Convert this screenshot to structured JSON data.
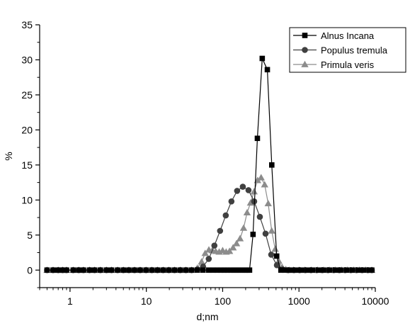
{
  "chart_data": {
    "type": "line",
    "xlabel": "d;nm",
    "ylabel": "%",
    "xscale": "log",
    "xlim": [
      0.4,
      10000
    ],
    "ylim": [
      -2.5,
      35
    ],
    "xticks": [
      1,
      10,
      100,
      1000,
      10000
    ],
    "xtick_labels": [
      "1",
      "10",
      "100",
      "1000",
      "10000"
    ],
    "yticks": [
      0,
      5,
      10,
      15,
      20,
      25,
      30,
      35
    ],
    "ytick_labels": [
      "0",
      "5",
      "10",
      "15",
      "20",
      "25",
      "30",
      "35"
    ],
    "grid": false,
    "legend_position": "top-right",
    "colors": {
      "Alnus Incana": "#000000",
      "Populus tremula": "#404040",
      "Primula veris": "#8c8c8c"
    },
    "series": [
      {
        "name": "Alnus Incana",
        "marker": "square",
        "color": "#000000",
        "x": [
          0.5,
          0.6,
          0.7,
          0.8,
          0.9,
          1.1,
          1.3,
          1.5,
          1.8,
          2.1,
          2.5,
          3.0,
          3.5,
          4.2,
          5.0,
          5.9,
          7.0,
          8.3,
          9.9,
          11.8,
          14.0,
          16.6,
          19.7,
          23.4,
          27.8,
          33.0,
          39.2,
          46.6,
          55.3,
          65.7,
          75,
          85,
          95,
          105,
          115,
          128,
          140,
          152,
          165,
          180,
          195,
          210,
          225,
          250,
          285,
          330,
          385,
          440,
          510,
          580,
          650,
          730,
          820,
          950,
          1100,
          1300,
          1500,
          1800,
          2100,
          2500,
          3000,
          3500,
          4200,
          5000,
          6000,
          7000,
          8300,
          9000
        ],
        "y": [
          0,
          0,
          0,
          0,
          0,
          0,
          0,
          0,
          0,
          0,
          0,
          0,
          0,
          0,
          0,
          0,
          0,
          0,
          0,
          0,
          0,
          0,
          0,
          0,
          0,
          0,
          0,
          0,
          0,
          0,
          0,
          0,
          0,
          0,
          0,
          0,
          0,
          0,
          0,
          0,
          0,
          0,
          0,
          5.1,
          18.8,
          30.2,
          28.6,
          15.0,
          2.0,
          0,
          0,
          0,
          0,
          0,
          0,
          0,
          0,
          0,
          0,
          0,
          0,
          0,
          0,
          0,
          0,
          0,
          0,
          0
        ]
      },
      {
        "name": "Populus tremula",
        "marker": "circle",
        "color": "#404040",
        "x": [
          0.5,
          0.6,
          0.7,
          0.8,
          0.9,
          1.1,
          1.3,
          1.5,
          1.8,
          2.1,
          2.5,
          3.0,
          3.5,
          4.2,
          5.0,
          5.9,
          7.0,
          8.3,
          9.9,
          11.8,
          14.0,
          16.6,
          19.7,
          23.4,
          27.8,
          33.0,
          39.2,
          46.6,
          55.3,
          65.7,
          77.9,
          92.5,
          109.8,
          130.3,
          154.7,
          183.6,
          218.0,
          258.7,
          307.1,
          364.5,
          432.7,
          513.6,
          609.6,
          723.6,
          859.0,
          1019.6,
          1210.3,
          1436.7,
          1705.4,
          2024.4,
          2403.1,
          2852.6,
          3386.2,
          4019.6,
          4771.4,
          5663.8,
          6723.3,
          7980.9,
          9000
        ],
        "y": [
          0,
          0,
          0,
          0,
          0,
          0,
          0,
          0,
          0,
          0,
          0,
          0,
          0,
          0,
          0,
          0,
          0,
          0,
          0,
          0,
          0,
          0,
          0,
          0,
          0,
          0,
          0,
          0.1,
          0.5,
          1.6,
          3.5,
          5.6,
          7.8,
          9.8,
          11.3,
          11.9,
          11.4,
          9.8,
          7.6,
          5.2,
          2.2,
          0.7,
          0.1,
          0,
          0,
          0,
          0,
          0,
          0,
          0,
          0,
          0,
          0,
          0,
          0,
          0,
          0,
          0,
          0
        ]
      },
      {
        "name": "Primula veris",
        "marker": "triangle",
        "color": "#8c8c8c",
        "x": [
          0.5,
          0.6,
          0.7,
          0.8,
          0.9,
          1.1,
          1.3,
          1.5,
          1.8,
          2.1,
          2.5,
          3.0,
          3.5,
          4.2,
          5.0,
          5.9,
          7.0,
          8.3,
          9.9,
          11.8,
          14.0,
          16.6,
          19.7,
          23.4,
          27.8,
          33.0,
          39.2,
          46.6,
          53,
          59,
          66,
          73,
          81,
          90,
          100,
          111,
          123,
          137,
          152,
          169,
          188,
          209,
          232,
          258,
          287,
          319,
          355,
          395,
          439,
          488,
          543,
          604,
          672,
          750,
          850,
          1000,
          1200,
          1450,
          1750,
          2100,
          2500,
          3000,
          3600,
          4300,
          5200,
          6200,
          7500,
          9000
        ],
        "y": [
          0,
          0,
          0,
          0,
          0,
          0,
          0,
          0,
          0,
          0,
          0,
          0,
          0,
          0,
          0,
          0,
          0,
          0,
          0,
          0,
          0,
          0,
          0,
          0,
          0,
          0,
          0,
          0.3,
          1.2,
          2.4,
          2.9,
          2.8,
          2.7,
          2.6,
          2.8,
          2.6,
          2.7,
          3.2,
          3.8,
          4.5,
          6.0,
          8.2,
          9.6,
          11.2,
          12.8,
          13.2,
          12.2,
          9.5,
          5.6,
          3.0,
          1.3,
          0.4,
          0.1,
          0,
          0,
          0,
          0,
          0,
          0,
          0,
          0,
          0,
          0,
          0,
          0,
          0,
          0,
          0
        ]
      }
    ]
  }
}
